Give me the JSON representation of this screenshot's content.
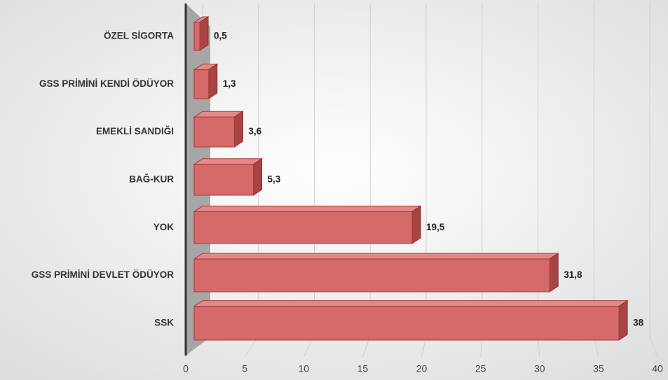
{
  "chart_data": {
    "type": "bar",
    "orientation": "horizontal",
    "categories": [
      "ÖZEL SİGORTA",
      "GSS PRİMİNİ KENDİ ÖDÜYOR",
      "EMEKLİ SANDIĞI",
      "BAĞ-KUR",
      "YOK",
      "GSS PRİMİNİ DEVLET ÖDÜYOR",
      "SSK"
    ],
    "values": [
      0.5,
      1.3,
      3.6,
      5.3,
      19.5,
      31.8,
      38
    ],
    "value_labels": [
      "0,5",
      "1,3",
      "3,6",
      "5,3",
      "19,5",
      "31,8",
      "38"
    ],
    "color": "#d46a6a",
    "xlim": [
      0,
      40
    ],
    "xticks": [
      0,
      5,
      10,
      15,
      20,
      25,
      30,
      35,
      40
    ],
    "grid": true
  }
}
